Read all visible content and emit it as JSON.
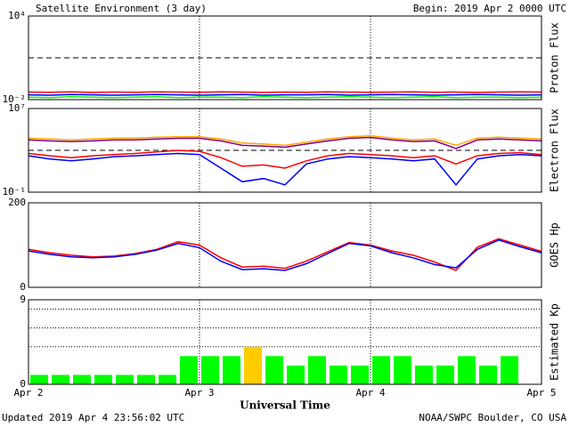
{
  "header": {
    "title": "Satellite Environment (3 day)",
    "begin": "Begin:  2019 Apr 2 0000 UTC"
  },
  "footer": {
    "updated": "Updated 2019 Apr  4 23:56:02 UTC",
    "source": "NOAA/SWPC Boulder, CO USA"
  },
  "chart_data": [
    {
      "type": "line",
      "ylabel": "Proton Flux",
      "log": true,
      "ylim": [
        0.01,
        10000
      ],
      "yticks": [
        {
          "value": 10000,
          "label": "10⁴"
        },
        {
          "value": 0.01,
          "label": "10⁻²"
        }
      ],
      "thresholds": [
        10
      ],
      "xlim": [
        0,
        72
      ],
      "xticks": [
        24,
        48
      ],
      "x": [
        0,
        3,
        6,
        9,
        12,
        15,
        18,
        21,
        24,
        27,
        30,
        33,
        36,
        39,
        42,
        45,
        48,
        51,
        54,
        57,
        60,
        63,
        66,
        69,
        72
      ],
      "series": [
        {
          "color": "#ff0000",
          "values": [
            0.035,
            0.034,
            0.036,
            0.033,
            0.035,
            0.034,
            0.036,
            0.035,
            0.034,
            0.036,
            0.035,
            0.033,
            0.035,
            0.034,
            0.036,
            0.035,
            0.034,
            0.035,
            0.036,
            0.034,
            0.035,
            0.033,
            0.035,
            0.036,
            0.035
          ]
        },
        {
          "color": "#0000ff",
          "values": [
            0.022,
            0.021,
            0.023,
            0.022,
            0.021,
            0.022,
            0.023,
            0.022,
            0.021,
            0.022,
            0.023,
            0.021,
            0.022,
            0.022,
            0.023,
            0.021,
            0.022,
            0.023,
            0.022,
            0.021,
            0.022,
            0.023,
            0.022,
            0.021,
            0.022
          ]
        },
        {
          "color": "#00ff00",
          "values": [
            0.015,
            0.014,
            0.016,
            0.015,
            0.014,
            0.015,
            0.016,
            0.014,
            0.015,
            0.015,
            0.014,
            0.016,
            0.015,
            0.014,
            0.015,
            0.016,
            0.015,
            0.014,
            0.015,
            0.016,
            0.014,
            0.015,
            0.015,
            0.014,
            0.015
          ]
        }
      ]
    },
    {
      "type": "line",
      "ylabel": "Electron Flux",
      "log": true,
      "ylim": [
        0.1,
        10000000
      ],
      "yticks": [
        {
          "value": 10000000,
          "label": "10⁷"
        },
        {
          "value": 0.1,
          "label": "10⁻¹"
        }
      ],
      "thresholds": [
        1000
      ],
      "xlim": [
        0,
        72
      ],
      "xticks": [
        24,
        48
      ],
      "x": [
        0,
        3,
        6,
        9,
        12,
        15,
        18,
        21,
        24,
        27,
        30,
        33,
        36,
        39,
        42,
        45,
        48,
        51,
        54,
        57,
        60,
        63,
        66,
        69,
        72
      ],
      "series": [
        {
          "color": "#ffa500",
          "values": [
            15000,
            12000,
            10000,
            12000,
            15000,
            15000,
            18000,
            20000,
            20000,
            12000,
            5000,
            4000,
            3000,
            6000,
            12000,
            20000,
            25000,
            15000,
            10000,
            12000,
            3000,
            15000,
            18000,
            15000,
            12000
          ]
        },
        {
          "color": "#800080",
          "values": [
            10000,
            8000,
            7000,
            8000,
            10000,
            10000,
            12000,
            14000,
            14000,
            8000,
            3000,
            2500,
            2000,
            4000,
            8000,
            14000,
            17000,
            10000,
            7000,
            8000,
            1500,
            10000,
            12000,
            10000,
            8000
          ]
        },
        {
          "color": "#ff0000",
          "values": [
            500,
            300,
            200,
            300,
            400,
            500,
            700,
            1000,
            800,
            200,
            30,
            40,
            20,
            100,
            300,
            500,
            400,
            300,
            200,
            300,
            50,
            300,
            500,
            600,
            400
          ]
        },
        {
          "color": "#0000ff",
          "values": [
            300,
            150,
            100,
            150,
            250,
            300,
            400,
            500,
            400,
            20,
            1,
            2,
            0.5,
            50,
            150,
            250,
            200,
            150,
            100,
            150,
            0.5,
            150,
            300,
            400,
            300
          ]
        }
      ]
    },
    {
      "type": "line",
      "ylabel": "GOES Hp",
      "log": false,
      "ylim": [
        0,
        200
      ],
      "yticks": [
        200,
        0
      ],
      "xlim": [
        0,
        72
      ],
      "xticks": [
        24,
        48
      ],
      "x": [
        0,
        3,
        6,
        9,
        12,
        15,
        18,
        21,
        24,
        27,
        30,
        33,
        36,
        39,
        42,
        45,
        48,
        51,
        54,
        57,
        60,
        63,
        66,
        69,
        72
      ],
      "series": [
        {
          "color": "#ff0000",
          "values": [
            90,
            82,
            76,
            72,
            74,
            80,
            90,
            108,
            100,
            70,
            48,
            50,
            45,
            62,
            84,
            106,
            100,
            86,
            76,
            60,
            40,
            95,
            115,
            100,
            85
          ]
        },
        {
          "color": "#0000ff",
          "values": [
            86,
            78,
            72,
            70,
            72,
            78,
            88,
            104,
            94,
            62,
            42,
            44,
            40,
            56,
            80,
            104,
            98,
            82,
            70,
            54,
            46,
            90,
            112,
            96,
            82
          ]
        }
      ]
    },
    {
      "type": "bar",
      "ylabel": "Estimated Kp",
      "ylim": [
        0,
        9
      ],
      "yticks": [
        9,
        0
      ],
      "ygrid": [
        4,
        6,
        8
      ],
      "xlim": [
        0,
        72
      ],
      "xticks": [
        {
          "value": 0,
          "label": "Apr 2"
        },
        {
          "value": 24,
          "label": "Apr 3"
        },
        {
          "value": 48,
          "label": "Apr 4"
        },
        {
          "value": 72,
          "label": "Apr 5"
        }
      ],
      "xlabel": "Universal Time",
      "x": [
        0,
        3,
        6,
        9,
        12,
        15,
        18,
        21,
        24,
        27,
        30,
        33,
        36,
        39,
        42,
        45,
        48,
        51,
        54,
        57,
        60,
        63,
        66
      ],
      "values": [
        1,
        1,
        1,
        1,
        1,
        1,
        1,
        3,
        3,
        3,
        4,
        3,
        2,
        3,
        2,
        2,
        3,
        3,
        2,
        2,
        3,
        2,
        3
      ],
      "colors": [
        "#00ff00",
        "#00ff00",
        "#00ff00",
        "#00ff00",
        "#00ff00",
        "#00ff00",
        "#00ff00",
        "#00ff00",
        "#00ff00",
        "#00ff00",
        "#ffcc00",
        "#00ff00",
        "#00ff00",
        "#00ff00",
        "#00ff00",
        "#00ff00",
        "#00ff00",
        "#00ff00",
        "#00ff00",
        "#00ff00",
        "#00ff00",
        "#00ff00",
        "#00ff00"
      ]
    }
  ]
}
